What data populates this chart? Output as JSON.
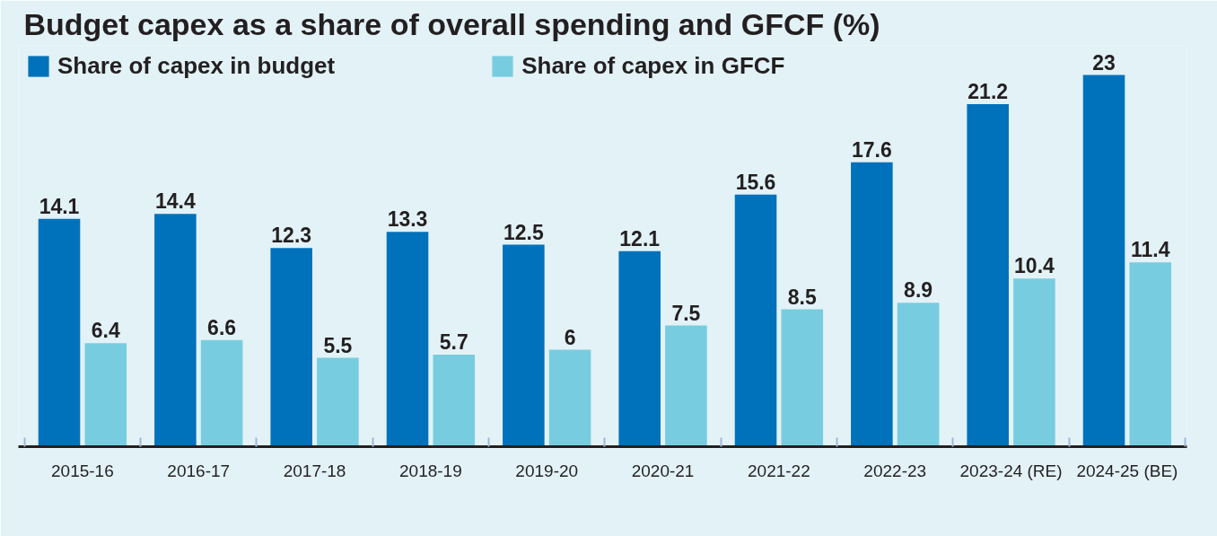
{
  "chart_data": {
    "type": "bar",
    "title": "Budget capex as a share of overall spending and GFCF (%)",
    "categories": [
      "2015-16",
      "2016-17",
      "2017-18",
      "2018-19",
      "2019-20",
      "2020-21",
      "2021-22",
      "2022-23",
      "2023-24 (RE)",
      "2024-25 (BE)"
    ],
    "series": [
      {
        "name": "Share of capex in budget",
        "color": "#0072bb",
        "values": [
          14.1,
          14.4,
          12.3,
          13.3,
          12.5,
          12.1,
          15.6,
          17.6,
          21.2,
          23
        ]
      },
      {
        "name": "Share of capex in GFCF",
        "color": "#77cddf",
        "values": [
          6.4,
          6.6,
          5.5,
          5.7,
          6,
          7.5,
          8.5,
          8.9,
          10.4,
          11.4
        ]
      }
    ],
    "data_labels": true,
    "legend": "top left",
    "grid": false,
    "tick_labels": "x"
  }
}
